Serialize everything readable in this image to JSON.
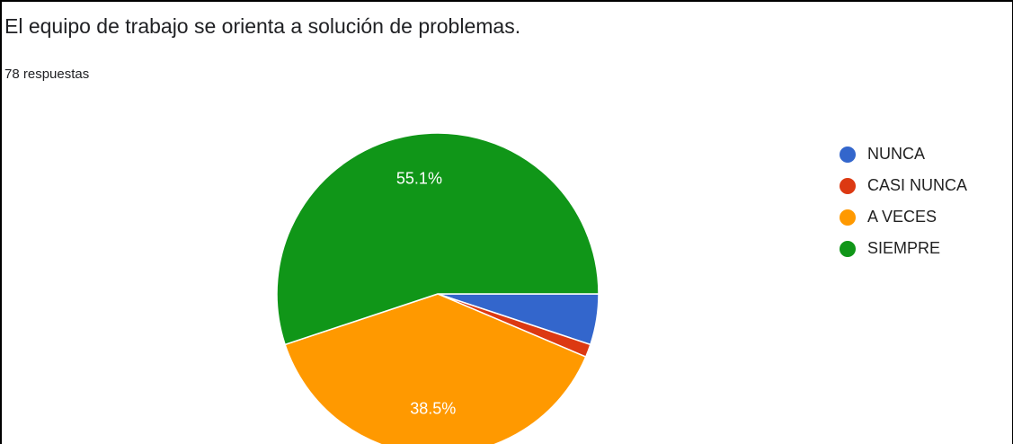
{
  "chart_data": {
    "type": "pie",
    "title": "El equipo de trabajo se orienta a solución de problemas.",
    "subtitle": "78 respuestas",
    "categories": [
      "NUNCA",
      "CASI NUNCA",
      "A VECES",
      "SIEMPRE"
    ],
    "values": [
      5.1,
      1.3,
      38.5,
      55.1
    ],
    "value_labels": [
      null,
      null,
      "38.5%",
      "55.1%"
    ],
    "colors": [
      "#3366cc",
      "#dc3912",
      "#ff9900",
      "#109618"
    ],
    "legend": "right"
  }
}
